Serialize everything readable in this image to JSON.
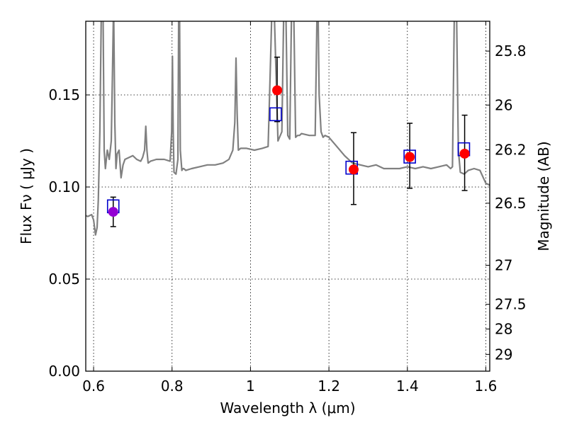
{
  "chart_data": {
    "type": "scatter",
    "xlabel": "Wavelength  λ (μm)",
    "ylabel": "Flux  Fν  ( μJy )",
    "y2label": "Magnitude (AB)",
    "xlim": [
      0.58,
      1.61
    ],
    "ylim": [
      0.0,
      0.19
    ],
    "grid": true,
    "x_ticks": [
      0.6,
      0.8,
      1.0,
      1.2,
      1.4,
      1.6
    ],
    "x_tick_labels": [
      "0.6",
      "0.8",
      "1",
      "1.2",
      "1.4",
      "1.6"
    ],
    "y_ticks": [
      0.0,
      0.05,
      0.1,
      0.15
    ],
    "y_tick_labels": [
      "0.00",
      "0.05",
      "0.10",
      "0.15"
    ],
    "y2_ticks": [
      {
        "label": "25.8",
        "flux": 0.1738
      },
      {
        "label": "26",
        "flux": 0.1445
      },
      {
        "label": "26.2",
        "flux": 0.1202
      },
      {
        "label": "26.5",
        "flux": 0.0912
      },
      {
        "label": "27",
        "flux": 0.0575
      },
      {
        "label": "27.5",
        "flux": 0.0363
      },
      {
        "label": "28",
        "flux": 0.0229
      },
      {
        "label": "29",
        "flux": 0.0091
      }
    ],
    "colors": {
      "template": "#808080",
      "model_box": "#0000cc",
      "measured": "#ff0000",
      "measured_blue_band": "#9400d3",
      "errorbar": "#000000",
      "grid": "#000000"
    },
    "template_spectrum": {
      "x": [
        0.575,
        0.585,
        0.595,
        0.6,
        0.605,
        0.609,
        0.612,
        0.616,
        0.62,
        0.624,
        0.627,
        0.63,
        0.635,
        0.64,
        0.645,
        0.648,
        0.651,
        0.654,
        0.657,
        0.66,
        0.665,
        0.67,
        0.675,
        0.68,
        0.69,
        0.7,
        0.71,
        0.72,
        0.725,
        0.73,
        0.733,
        0.736,
        0.739,
        0.745,
        0.76,
        0.78,
        0.795,
        0.799,
        0.801,
        0.803,
        0.805,
        0.81,
        0.815,
        0.817,
        0.819,
        0.821,
        0.825,
        0.828,
        0.83,
        0.835,
        0.85,
        0.87,
        0.89,
        0.91,
        0.93,
        0.945,
        0.955,
        0.96,
        0.963,
        0.966,
        0.969,
        0.975,
        0.99,
        1.01,
        1.03,
        1.045,
        1.05,
        1.055,
        1.06,
        1.07,
        1.08,
        1.085,
        1.09,
        1.095,
        1.1,
        1.105,
        1.11,
        1.115,
        1.12,
        1.125,
        1.13,
        1.15,
        1.165,
        1.17,
        1.172,
        1.175,
        1.18,
        1.185,
        1.19,
        1.2,
        1.22,
        1.24,
        1.26,
        1.28,
        1.3,
        1.32,
        1.34,
        1.36,
        1.38,
        1.4,
        1.42,
        1.44,
        1.46,
        1.48,
        1.5,
        1.51,
        1.515,
        1.52,
        1.525,
        1.53,
        1.535,
        1.545,
        1.555,
        1.57,
        1.585,
        1.6,
        1.61
      ],
      "y": [
        0.085,
        0.084,
        0.085,
        0.082,
        0.074,
        0.078,
        0.093,
        0.13,
        0.2,
        0.2,
        0.12,
        0.11,
        0.12,
        0.115,
        0.125,
        0.16,
        0.2,
        0.135,
        0.11,
        0.118,
        0.12,
        0.105,
        0.112,
        0.115,
        0.116,
        0.117,
        0.115,
        0.114,
        0.116,
        0.12,
        0.133,
        0.12,
        0.113,
        0.114,
        0.115,
        0.115,
        0.114,
        0.13,
        0.171,
        0.13,
        0.108,
        0.107,
        0.115,
        0.2,
        0.2,
        0.12,
        0.109,
        0.11,
        0.11,
        0.109,
        0.11,
        0.111,
        0.112,
        0.112,
        0.113,
        0.115,
        0.12,
        0.135,
        0.17,
        0.14,
        0.12,
        0.121,
        0.121,
        0.12,
        0.121,
        0.122,
        0.16,
        0.2,
        0.2,
        0.125,
        0.13,
        0.2,
        0.2,
        0.128,
        0.126,
        0.2,
        0.2,
        0.127,
        0.128,
        0.128,
        0.129,
        0.128,
        0.128,
        0.2,
        0.2,
        0.15,
        0.13,
        0.127,
        0.128,
        0.127,
        0.122,
        0.117,
        0.113,
        0.112,
        0.111,
        0.112,
        0.11,
        0.11,
        0.11,
        0.111,
        0.11,
        0.111,
        0.11,
        0.111,
        0.112,
        0.11,
        0.111,
        0.2,
        0.2,
        0.12,
        0.108,
        0.107,
        0.109,
        0.11,
        0.109,
        0.102,
        0.101
      ]
    },
    "model_boxes": {
      "x": [
        0.65,
        1.064,
        1.258,
        1.406,
        1.544
      ],
      "y": [
        0.0895,
        0.1395,
        0.1105,
        0.1165,
        0.1205
      ]
    },
    "measured_points": {
      "x": [
        0.65,
        1.068,
        1.263,
        1.406,
        1.546
      ],
      "y": [
        0.0865,
        0.1525,
        0.1095,
        0.1163,
        0.1181
      ],
      "yerr_low": [
        0.008,
        0.017,
        0.019,
        0.017,
        0.02
      ],
      "yerr_high": [
        0.008,
        0.018,
        0.02,
        0.0183,
        0.0209
      ]
    }
  }
}
